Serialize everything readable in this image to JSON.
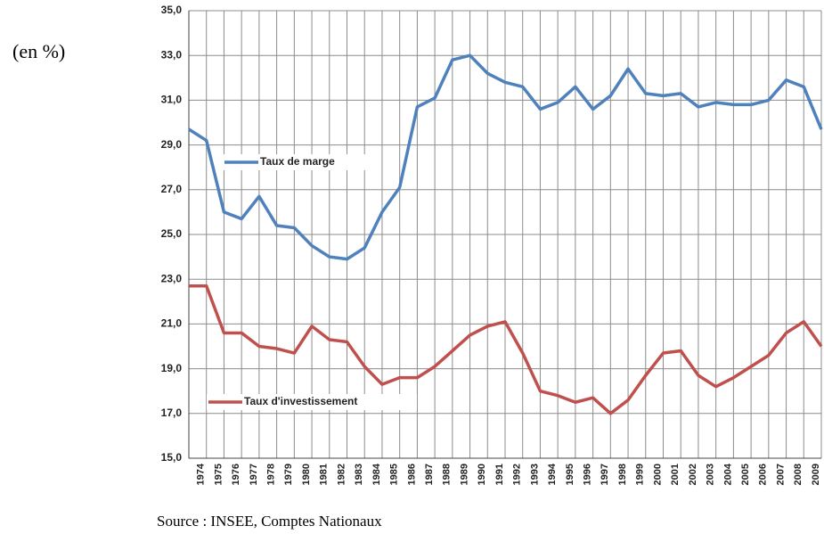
{
  "chart_data": {
    "type": "line",
    "annotations": {
      "unit": "(en %)",
      "source": "Source : INSEE, Comptes Nationaux"
    },
    "categories": [
      null,
      "1974",
      "1975",
      "1976",
      "1977",
      "1978",
      "1979",
      "1980",
      "1981",
      "1982",
      "1983",
      "1984",
      "1985",
      "1986",
      "1987",
      "1988",
      "1989",
      "1990",
      "1991",
      "1992",
      "1993",
      "1994",
      "1995",
      "1996",
      "1997",
      "1998",
      "1999",
      "2000",
      "2001",
      "2002",
      "2003",
      "2004",
      "2005",
      "2006",
      "2007",
      "2008",
      "2009"
    ],
    "series": [
      {
        "name": "Taux de marge",
        "color": "#4f81bd",
        "values": [
          29.7,
          29.2,
          26.0,
          25.7,
          26.7,
          25.4,
          25.3,
          24.5,
          24.0,
          23.9,
          24.4,
          26.0,
          27.1,
          30.7,
          31.1,
          32.8,
          33.0,
          32.2,
          31.8,
          31.6,
          30.6,
          30.9,
          31.6,
          30.6,
          31.2,
          32.4,
          31.3,
          31.2,
          31.3,
          30.7,
          30.9,
          30.8,
          30.8,
          31.0,
          31.9,
          31.6,
          29.7
        ]
      },
      {
        "name": "Taux d'investissement",
        "color": "#c0504d",
        "values": [
          22.7,
          22.7,
          20.6,
          20.6,
          20.0,
          19.9,
          19.7,
          20.9,
          20.3,
          20.2,
          19.1,
          18.3,
          18.6,
          18.6,
          19.1,
          19.8,
          20.5,
          20.9,
          21.1,
          19.7,
          18.0,
          17.8,
          17.5,
          17.7,
          17.0,
          17.6,
          18.7,
          19.7,
          19.8,
          18.7,
          18.2,
          18.6,
          19.1,
          19.6,
          20.6,
          21.1,
          20.0
        ]
      }
    ],
    "ylim": [
      15,
      35
    ],
    "yticks": [
      {
        "value": 15,
        "label": "15,0"
      },
      {
        "value": 17,
        "label": "17,0"
      },
      {
        "value": 19,
        "label": "19,0"
      },
      {
        "value": 21,
        "label": "21,0"
      },
      {
        "value": 23,
        "label": "23,0"
      },
      {
        "value": 25,
        "label": "25,0"
      },
      {
        "value": 27,
        "label": "27,0"
      },
      {
        "value": 29,
        "label": "29,0"
      },
      {
        "value": 31,
        "label": "31,0"
      },
      {
        "value": 33,
        "label": "33,0"
      },
      {
        "value": 35,
        "label": "35,0"
      }
    ],
    "grid": true
  }
}
